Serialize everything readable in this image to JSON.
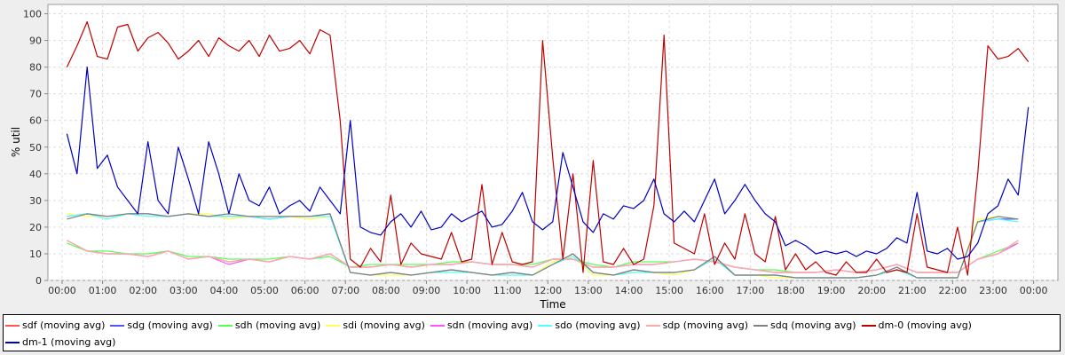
{
  "chart_data": {
    "type": "line",
    "title": "",
    "xlabel": "Time",
    "ylabel": "% util",
    "xlim_hours": [
      -0.35,
      24.6
    ],
    "ylim": [
      0,
      103.5
    ],
    "grid": true,
    "legend_position": "bottom",
    "x_ticks": [
      {
        "v": 0,
        "label": "00:00"
      },
      {
        "v": 1,
        "label": "01:00"
      },
      {
        "v": 2,
        "label": "02:00"
      },
      {
        "v": 3,
        "label": "03:00"
      },
      {
        "v": 4,
        "label": "04:00"
      },
      {
        "v": 5,
        "label": "05:00"
      },
      {
        "v": 6,
        "label": "06:00"
      },
      {
        "v": 7,
        "label": "07:00"
      },
      {
        "v": 8,
        "label": "08:00"
      },
      {
        "v": 9,
        "label": "09:00"
      },
      {
        "v": 10,
        "label": "10:00"
      },
      {
        "v": 11,
        "label": "11:00"
      },
      {
        "v": 12,
        "label": "12:00"
      },
      {
        "v": 13,
        "label": "13:00"
      },
      {
        "v": 14,
        "label": "14:00"
      },
      {
        "v": 15,
        "label": "15:00"
      },
      {
        "v": 16,
        "label": "16:00"
      },
      {
        "v": 17,
        "label": "17:00"
      },
      {
        "v": 18,
        "label": "18:00"
      },
      {
        "v": 19,
        "label": "19:00"
      },
      {
        "v": 20,
        "label": "20:00"
      },
      {
        "v": 21,
        "label": "21:00"
      },
      {
        "v": 22,
        "label": "22:00"
      },
      {
        "v": 23,
        "label": "23:00"
      },
      {
        "v": 24,
        "label": "00:00"
      }
    ],
    "y_ticks": [
      {
        "v": 0,
        "label": "0"
      },
      {
        "v": 10,
        "label": "10"
      },
      {
        "v": 20,
        "label": "20"
      },
      {
        "v": 30,
        "label": "30"
      },
      {
        "v": 40,
        "label": "40"
      },
      {
        "v": 50,
        "label": "50"
      },
      {
        "v": 60,
        "label": "60"
      },
      {
        "v": 70,
        "label": "70"
      },
      {
        "v": 80,
        "label": "80"
      },
      {
        "v": 90,
        "label": "90"
      },
      {
        "v": 100,
        "label": "100"
      }
    ],
    "series": [
      {
        "name": "sdf (moving avg)",
        "color": "#ff5555",
        "x_start_hours": 0.12,
        "x_step_hours": 0.5,
        "values": [
          15,
          11,
          10,
          10,
          9,
          11,
          8,
          9,
          7,
          8,
          7,
          9,
          8,
          10,
          5,
          5,
          6,
          5,
          6,
          6,
          7,
          6,
          6,
          5,
          8,
          8,
          5,
          5,
          6,
          6,
          7,
          8,
          7,
          5,
          4,
          3,
          3,
          3,
          4,
          3,
          4,
          6,
          3,
          3,
          3,
          8,
          10,
          15
        ]
      },
      {
        "name": "sdg (moving avg)",
        "color": "#5555ff",
        "x_start_hours": 0.12,
        "x_step_hours": 0.5,
        "values": [
          24,
          25,
          24,
          25,
          25,
          24,
          25,
          24,
          24,
          24,
          23,
          24,
          24,
          25,
          3,
          2,
          3,
          2,
          3,
          4,
          3,
          2,
          3,
          2,
          6,
          10,
          3,
          2,
          4,
          3,
          3,
          4,
          9,
          2,
          2,
          2,
          1,
          1,
          1,
          1,
          2,
          5,
          1,
          1,
          1,
          22,
          23,
          23
        ]
      },
      {
        "name": "sdh (moving avg)",
        "color": "#55ff55",
        "x_start_hours": 0.12,
        "x_step_hours": 0.5,
        "values": [
          14,
          11,
          11,
          10,
          10,
          11,
          9,
          9,
          8,
          8,
          8,
          9,
          8,
          9,
          5,
          6,
          6,
          6,
          6,
          7,
          7,
          6,
          6,
          6,
          8,
          8,
          6,
          5,
          7,
          7,
          7,
          8,
          7,
          5,
          4,
          4,
          3,
          3,
          4,
          3,
          4,
          6,
          3,
          3,
          3,
          8,
          11,
          14
        ]
      },
      {
        "name": "sdi (moving avg)",
        "color": "#ffff55",
        "x_start_hours": 0.12,
        "x_step_hours": 0.5,
        "values": [
          25,
          24,
          24,
          25,
          24,
          24,
          25,
          25,
          23,
          24,
          24,
          24,
          23,
          24,
          3,
          2,
          2,
          2,
          3,
          3,
          3,
          2,
          2,
          2,
          7,
          9,
          2,
          2,
          3,
          3,
          2,
          4,
          8,
          2,
          2,
          1,
          1,
          1,
          1,
          1,
          2,
          4,
          1,
          1,
          1,
          23,
          24,
          23
        ]
      },
      {
        "name": "sdn (moving avg)",
        "color": "#ff55ff",
        "x_start_hours": 0.12,
        "x_step_hours": 0.5,
        "values": [
          15,
          11,
          10,
          10,
          9,
          11,
          8,
          9,
          6,
          8,
          7,
          9,
          8,
          10,
          5,
          5,
          6,
          5,
          6,
          6,
          7,
          6,
          6,
          5,
          8,
          8,
          5,
          5,
          6,
          6,
          7,
          8,
          7,
          5,
          4,
          3,
          3,
          3,
          4,
          3,
          4,
          6,
          3,
          3,
          3,
          8,
          10,
          14
        ]
      },
      {
        "name": "sdo (moving avg)",
        "color": "#55ffff",
        "x_start_hours": 0.12,
        "x_step_hours": 0.5,
        "values": [
          24,
          25,
          23,
          25,
          24,
          24,
          25,
          24,
          24,
          24,
          23,
          24,
          24,
          24,
          3,
          2,
          3,
          2,
          3,
          3,
          3,
          2,
          2,
          2,
          6,
          9,
          3,
          2,
          3,
          3,
          3,
          4,
          8,
          2,
          2,
          2,
          1,
          1,
          1,
          1,
          2,
          4,
          1,
          1,
          1,
          22,
          23,
          22
        ]
      },
      {
        "name": "sdp (moving avg)",
        "color": "#ffaaaa",
        "x_start_hours": 0.12,
        "x_step_hours": 0.5,
        "values": [
          15,
          11,
          10,
          10,
          9,
          11,
          8,
          9,
          7,
          8,
          7,
          9,
          8,
          10,
          5,
          5,
          6,
          5,
          6,
          6,
          7,
          6,
          6,
          5,
          8,
          8,
          5,
          5,
          6,
          6,
          7,
          8,
          7,
          5,
          4,
          3,
          3,
          3,
          4,
          3,
          4,
          6,
          3,
          3,
          3,
          8,
          10,
          15
        ]
      },
      {
        "name": "sdq (moving avg)",
        "color": "#808080",
        "x_start_hours": 0.12,
        "x_step_hours": 0.5,
        "values": [
          23,
          25,
          24,
          25,
          25,
          24,
          25,
          24,
          25,
          24,
          24,
          24,
          24,
          25,
          3,
          2,
          3,
          2,
          3,
          4,
          3,
          2,
          3,
          2,
          6,
          10,
          3,
          2,
          4,
          3,
          3,
          4,
          9,
          2,
          2,
          2,
          1,
          1,
          1,
          1,
          2,
          5,
          1,
          1,
          1,
          22,
          24,
          23
        ]
      },
      {
        "name": "dm-0 (moving avg)",
        "color": "#c00000",
        "x_start_hours": 0.12,
        "x_step_hours": 0.25,
        "values": [
          80,
          88,
          97,
          84,
          83,
          95,
          96,
          86,
          91,
          93,
          89,
          83,
          86,
          90,
          84,
          91,
          88,
          86,
          90,
          84,
          92,
          86,
          87,
          90,
          85,
          94,
          92,
          60,
          8,
          5,
          12,
          7,
          32,
          6,
          14,
          10,
          9,
          8,
          18,
          7,
          8,
          36,
          6,
          18,
          7,
          6,
          7,
          90,
          46,
          8,
          40,
          3,
          45,
          7,
          6,
          12,
          6,
          8,
          28,
          92,
          14,
          12,
          10,
          25,
          6,
          14,
          8,
          25,
          10,
          7,
          24,
          4,
          10,
          4,
          7,
          3,
          2,
          7,
          3,
          3,
          8,
          3,
          4,
          3,
          25,
          5,
          4,
          3,
          20,
          2,
          40,
          88,
          83,
          84,
          87,
          82
        ]
      },
      {
        "name": "dm-1 (moving avg)",
        "color": "#0000c0",
        "x_start_hours": 0.12,
        "x_step_hours": 0.25,
        "values": [
          55,
          40,
          80,
          42,
          47,
          35,
          30,
          25,
          52,
          30,
          25,
          50,
          38,
          25,
          52,
          40,
          25,
          40,
          30,
          28,
          35,
          25,
          28,
          30,
          26,
          35,
          30,
          25,
          60,
          20,
          18,
          17,
          22,
          25,
          20,
          26,
          19,
          20,
          25,
          22,
          24,
          26,
          20,
          21,
          26,
          33,
          22,
          19,
          22,
          48,
          35,
          22,
          18,
          25,
          23,
          28,
          27,
          30,
          38,
          25,
          22,
          26,
          22,
          30,
          38,
          25,
          30,
          36,
          30,
          25,
          22,
          13,
          15,
          13,
          10,
          11,
          10,
          11,
          9,
          11,
          10,
          12,
          16,
          14,
          33,
          11,
          10,
          12,
          8,
          9,
          14,
          25,
          28,
          38,
          32,
          65
        ]
      }
    ]
  }
}
